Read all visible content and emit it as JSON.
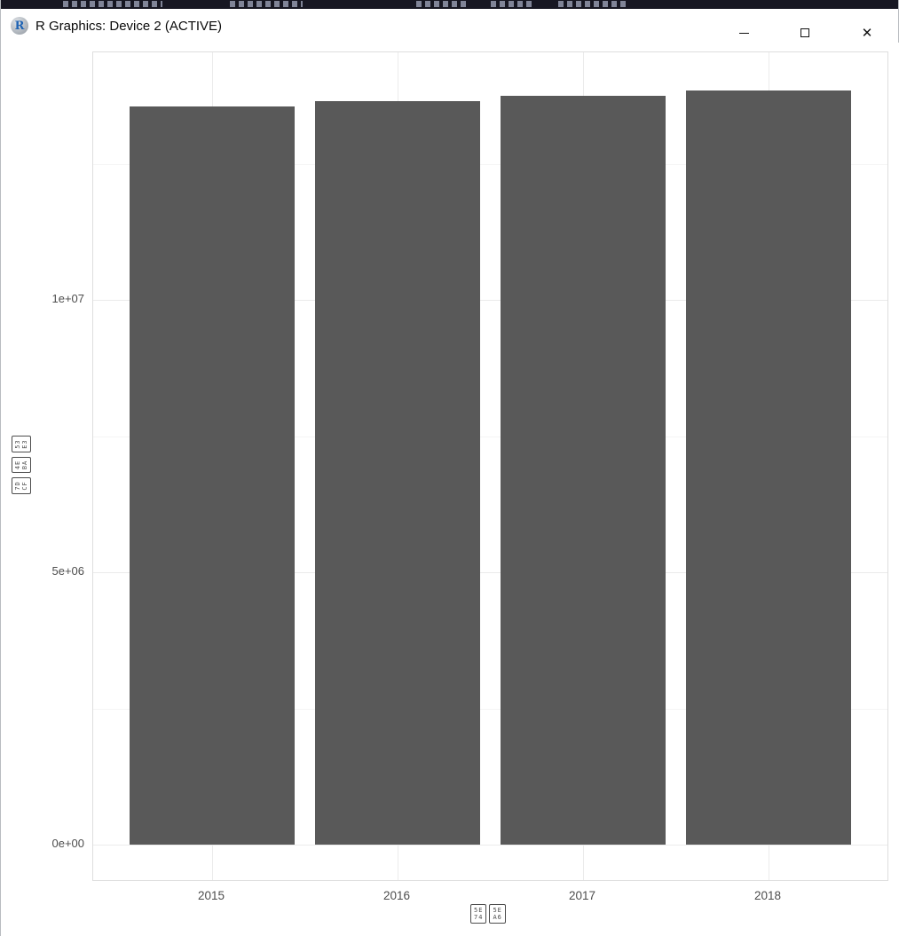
{
  "window": {
    "title": "R Graphics: Device 2 (ACTIVE)",
    "logo_letter": "R",
    "controls": {
      "minimize": "–",
      "maximize": "□",
      "close": "✕"
    }
  },
  "chart_data": {
    "type": "bar",
    "title": "",
    "categories": [
      "2015",
      "2016",
      "2017",
      "2018"
    ],
    "values": [
      13550000,
      13650000,
      13740000,
      13840000
    ],
    "xlabel": "年度",
    "ylabel": "総人口",
    "xlabel_rendered_as_missing_glyph_hex": [
      "5E74",
      "5EA6"
    ],
    "ylabel_rendered_as_missing_glyph_hex": [
      "7DCF",
      "4EBA",
      "53E3"
    ],
    "yticks": [
      {
        "label": "0e+00",
        "value": 0
      },
      {
        "label": "5e+06",
        "value": 5000000
      },
      {
        "label": "1e+07",
        "value": 10000000
      }
    ],
    "ylim": [
      0,
      14540000
    ],
    "grid": true,
    "legend": false,
    "bar_color": "#595959",
    "axis_text_color": "#4d4d4d",
    "grid_major_color": "#ebebeb",
    "grid_minor_color": "#f5f5f5",
    "panel_background": "#ffffff"
  }
}
